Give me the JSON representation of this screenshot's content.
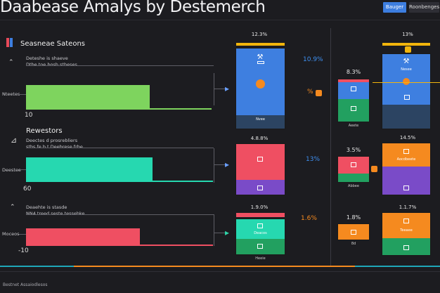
{
  "header": {
    "title": "Daabease Amalys by Destemerch",
    "primary_button": "Bauger",
    "secondary_button": "Roonbenges"
  },
  "colors": {
    "accent_blue": "#3e7fe0",
    "yellow": "#f2b50c",
    "orange": "#f58a1f",
    "green": "#22a060",
    "teal": "#26d8b0",
    "lime": "#7ed45e",
    "pink": "#ef4f62",
    "purple": "#7a4bc8",
    "slate": "#2c4462",
    "cyan_rule": "#1fa7b8"
  },
  "left_panel": {
    "section1": {
      "title": "Seasneae Sateons",
      "line1": "Deteshe is shaeve",
      "line2": "Dtbe toe bosh stheses",
      "side_label": "Nteetes",
      "axis_value": "10",
      "bar_value": 0.49
    },
    "section2": {
      "title": "Rewestors",
      "line1": "Deectes d prosrebliers",
      "line2": "stbs fe b t Deebrese frbe",
      "side_label": "Deestee",
      "axis_value": "60",
      "bar_value": 0.5
    },
    "section3": {
      "line1": "Deaehte is stasde",
      "line2": "NN4 treed seste tessebke",
      "side_label": "Moceos",
      "axis_value": "-10",
      "bar_value": 0.45
    }
  },
  "middle_column": {
    "top_pct": "12.3%",
    "float_pct": "10.9%",
    "side_pct": "%",
    "card1_footer": "Nvee",
    "card2_top_pct": "4.8.8%",
    "card2_float_pct": "13%",
    "card3_top_pct": "1.9.0%",
    "card3_float_pct": "1.6%",
    "card3_label1": "Deacos",
    "card3_label2": "Heeie"
  },
  "right_column": {
    "top_pct": "13%",
    "top_label": "Nesee",
    "small1_pct": "8.3%",
    "small1_footer": "Aeete",
    "small2_pct": "3.5%",
    "small2_footer": "Abbee",
    "small3_pct": "1.8%",
    "small3_label": "8d",
    "mid_pct": "14.5%",
    "mid_label": "Aocdbeete",
    "bottom_pct": "1.1.7%",
    "bottom_label": "Teeaee"
  },
  "footer": {
    "text": "Bestnet Assaiodlesos"
  }
}
